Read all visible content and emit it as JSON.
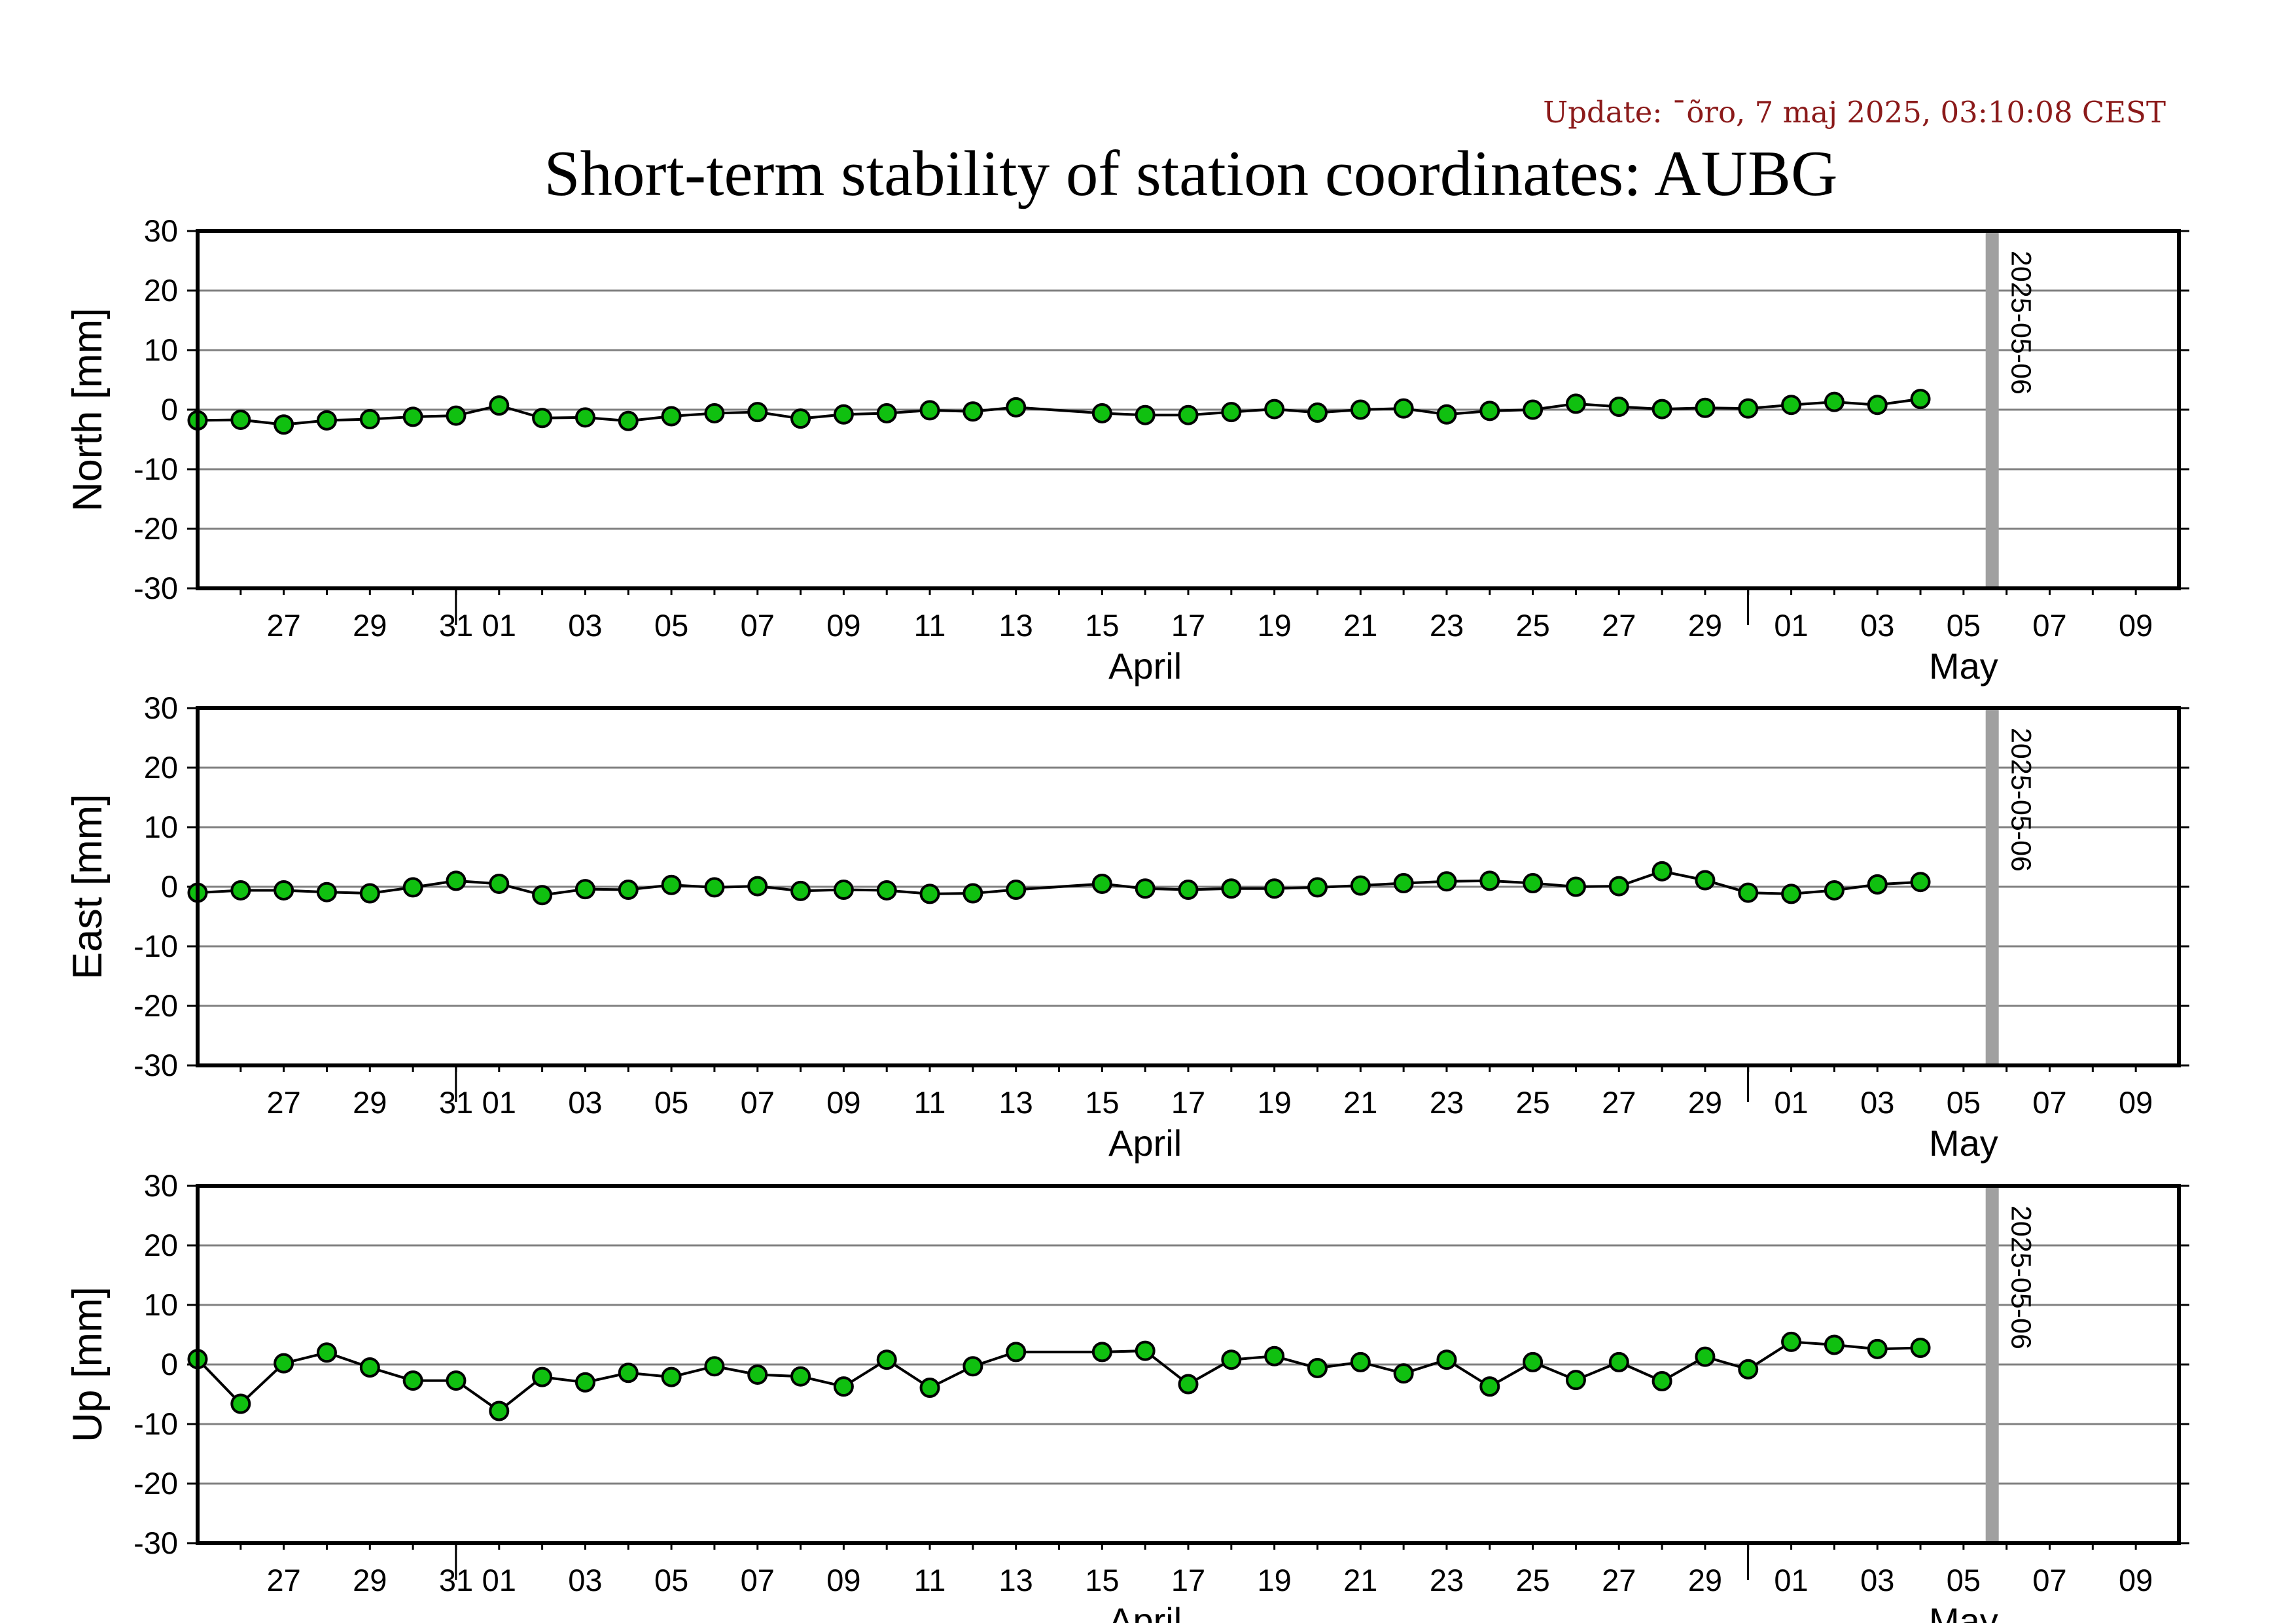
{
  "update_text": "Update: ¯õro, 7 maj 2025, 03:10:08 CEST",
  "title": "Short-term stability of station coordinates: AUBG",
  "colors": {
    "marker": "#10c010",
    "line": "#000000",
    "grid": "#808080",
    "today": "#a0a0a0",
    "update": "#8b1a1a"
  },
  "chart_data": [
    {
      "type": "line",
      "ylabel": "North [mm]",
      "ylim": [
        -30,
        30
      ],
      "yticks": [
        30,
        20,
        10,
        0,
        -10,
        -20,
        -30
      ],
      "grid": true,
      "xlim": [
        "2025-03-25",
        "2025-05-10"
      ],
      "month_labels": [
        {
          "label": "April",
          "date": "2025-04-16"
        },
        {
          "label": "May",
          "date": "2025-05-05"
        }
      ],
      "xtick_labels": [
        {
          "label": "27",
          "date": "2025-03-27"
        },
        {
          "label": "29",
          "date": "2025-03-29"
        },
        {
          "label": "31",
          "date": "2025-03-31"
        },
        {
          "label": "01",
          "date": "2025-04-01"
        },
        {
          "label": "03",
          "date": "2025-04-03"
        },
        {
          "label": "05",
          "date": "2025-04-05"
        },
        {
          "label": "07",
          "date": "2025-04-07"
        },
        {
          "label": "09",
          "date": "2025-04-09"
        },
        {
          "label": "11",
          "date": "2025-04-11"
        },
        {
          "label": "13",
          "date": "2025-04-13"
        },
        {
          "label": "15",
          "date": "2025-04-15"
        },
        {
          "label": "17",
          "date": "2025-04-17"
        },
        {
          "label": "19",
          "date": "2025-04-19"
        },
        {
          "label": "21",
          "date": "2025-04-21"
        },
        {
          "label": "23",
          "date": "2025-04-23"
        },
        {
          "label": "25",
          "date": "2025-04-25"
        },
        {
          "label": "27",
          "date": "2025-04-27"
        },
        {
          "label": "29",
          "date": "2025-04-29"
        },
        {
          "label": "01",
          "date": "2025-05-01"
        },
        {
          "label": "03",
          "date": "2025-05-03"
        },
        {
          "label": "05",
          "date": "2025-05-05"
        },
        {
          "label": "07",
          "date": "2025-05-07"
        },
        {
          "label": "09",
          "date": "2025-05-09"
        }
      ],
      "marker_line": {
        "date": "2025-05-06",
        "label": "2025-05-06"
      },
      "series": [
        {
          "x": [
            "2025-03-25",
            "2025-03-26",
            "2025-03-27",
            "2025-03-28",
            "2025-03-29",
            "2025-03-30",
            "2025-03-31",
            "2025-04-01",
            "2025-04-02",
            "2025-04-03",
            "2025-04-04",
            "2025-04-05",
            "2025-04-06",
            "2025-04-07",
            "2025-04-08",
            "2025-04-09",
            "2025-04-10",
            "2025-04-11",
            "2025-04-12",
            "2025-04-13",
            "2025-04-15",
            "2025-04-16",
            "2025-04-17",
            "2025-04-18",
            "2025-04-19",
            "2025-04-20",
            "2025-04-21",
            "2025-04-22",
            "2025-04-23",
            "2025-04-24",
            "2025-04-25",
            "2025-04-26",
            "2025-04-27",
            "2025-04-28",
            "2025-04-29",
            "2025-04-30",
            "2025-05-01",
            "2025-05-02",
            "2025-05-03",
            "2025-05-04",
            "2025-05-05"
          ],
          "y": [
            -1.8,
            -1.7,
            -2.5,
            -1.8,
            -1.6,
            -1.2,
            -1.0,
            0.7,
            -1.4,
            -1.3,
            -1.9,
            -1.1,
            -0.6,
            -0.4,
            -1.5,
            -0.8,
            -0.6,
            -0.1,
            -0.3,
            0.4,
            -0.6,
            -0.9,
            -0.9,
            -0.4,
            0.1,
            -0.5,
            0.0,
            0.2,
            -0.8,
            -0.2,
            0.0,
            1.0,
            0.5,
            0.1,
            0.3,
            0.2,
            0.8,
            1.3,
            0.8,
            1.8,
            null
          ]
        }
      ]
    },
    {
      "type": "line",
      "ylabel": "East [mm]",
      "ylim": [
        -30,
        30
      ],
      "yticks": [
        30,
        20,
        10,
        0,
        -10,
        -20,
        -30
      ],
      "grid": true,
      "xlim": [
        "2025-03-25",
        "2025-05-10"
      ],
      "month_labels": [
        {
          "label": "April",
          "date": "2025-04-16"
        },
        {
          "label": "May",
          "date": "2025-05-05"
        }
      ],
      "xtick_labels": [
        {
          "label": "27",
          "date": "2025-03-27"
        },
        {
          "label": "29",
          "date": "2025-03-29"
        },
        {
          "label": "31",
          "date": "2025-03-31"
        },
        {
          "label": "01",
          "date": "2025-04-01"
        },
        {
          "label": "03",
          "date": "2025-04-03"
        },
        {
          "label": "05",
          "date": "2025-04-05"
        },
        {
          "label": "07",
          "date": "2025-04-07"
        },
        {
          "label": "09",
          "date": "2025-04-09"
        },
        {
          "label": "11",
          "date": "2025-04-11"
        },
        {
          "label": "13",
          "date": "2025-04-13"
        },
        {
          "label": "15",
          "date": "2025-04-15"
        },
        {
          "label": "17",
          "date": "2025-04-17"
        },
        {
          "label": "19",
          "date": "2025-04-19"
        },
        {
          "label": "21",
          "date": "2025-04-21"
        },
        {
          "label": "23",
          "date": "2025-04-23"
        },
        {
          "label": "25",
          "date": "2025-04-25"
        },
        {
          "label": "27",
          "date": "2025-04-27"
        },
        {
          "label": "29",
          "date": "2025-04-29"
        },
        {
          "label": "01",
          "date": "2025-05-01"
        },
        {
          "label": "03",
          "date": "2025-05-03"
        },
        {
          "label": "05",
          "date": "2025-05-05"
        },
        {
          "label": "07",
          "date": "2025-05-07"
        },
        {
          "label": "09",
          "date": "2025-05-09"
        }
      ],
      "marker_line": {
        "date": "2025-05-06",
        "label": "2025-05-06"
      },
      "series": [
        {
          "x": [
            "2025-03-25",
            "2025-03-26",
            "2025-03-27",
            "2025-03-28",
            "2025-03-29",
            "2025-03-30",
            "2025-03-31",
            "2025-04-01",
            "2025-04-02",
            "2025-04-03",
            "2025-04-04",
            "2025-04-05",
            "2025-04-06",
            "2025-04-07",
            "2025-04-08",
            "2025-04-09",
            "2025-04-10",
            "2025-04-11",
            "2025-04-12",
            "2025-04-13",
            "2025-04-15",
            "2025-04-16",
            "2025-04-17",
            "2025-04-18",
            "2025-04-19",
            "2025-04-20",
            "2025-04-21",
            "2025-04-22",
            "2025-04-23",
            "2025-04-24",
            "2025-04-25",
            "2025-04-26",
            "2025-04-27",
            "2025-04-28",
            "2025-04-29",
            "2025-04-30",
            "2025-05-01",
            "2025-05-02",
            "2025-05-03",
            "2025-05-04"
          ],
          "y": [
            -1.0,
            -0.6,
            -0.6,
            -0.9,
            -1.1,
            -0.1,
            1.0,
            0.5,
            -1.4,
            -0.4,
            -0.5,
            0.3,
            -0.1,
            0.1,
            -0.7,
            -0.5,
            -0.6,
            -1.2,
            -1.1,
            -0.5,
            0.5,
            -0.3,
            -0.5,
            -0.3,
            -0.3,
            -0.1,
            0.2,
            0.6,
            0.9,
            1.0,
            0.6,
            0.0,
            0.1,
            2.6,
            1.1,
            -1.0,
            -1.2,
            -0.6,
            0.4,
            0.8
          ]
        }
      ]
    },
    {
      "type": "line",
      "ylabel": "Up [mm]",
      "ylim": [
        -30,
        30
      ],
      "yticks": [
        30,
        20,
        10,
        0,
        -10,
        -20,
        -30
      ],
      "grid": true,
      "xlim": [
        "2025-03-25",
        "2025-05-10"
      ],
      "month_labels": [
        {
          "label": "April",
          "date": "2025-04-16"
        },
        {
          "label": "May",
          "date": "2025-05-05"
        }
      ],
      "xtick_labels": [
        {
          "label": "27",
          "date": "2025-03-27"
        },
        {
          "label": "29",
          "date": "2025-03-29"
        },
        {
          "label": "31",
          "date": "2025-03-31"
        },
        {
          "label": "01",
          "date": "2025-04-01"
        },
        {
          "label": "03",
          "date": "2025-04-03"
        },
        {
          "label": "05",
          "date": "2025-04-05"
        },
        {
          "label": "07",
          "date": "2025-04-07"
        },
        {
          "label": "09",
          "date": "2025-04-09"
        },
        {
          "label": "11",
          "date": "2025-04-11"
        },
        {
          "label": "13",
          "date": "2025-04-13"
        },
        {
          "label": "15",
          "date": "2025-04-15"
        },
        {
          "label": "17",
          "date": "2025-04-17"
        },
        {
          "label": "19",
          "date": "2025-04-19"
        },
        {
          "label": "21",
          "date": "2025-04-21"
        },
        {
          "label": "23",
          "date": "2025-04-23"
        },
        {
          "label": "25",
          "date": "2025-04-25"
        },
        {
          "label": "27",
          "date": "2025-04-27"
        },
        {
          "label": "29",
          "date": "2025-04-29"
        },
        {
          "label": "01",
          "date": "2025-05-01"
        },
        {
          "label": "03",
          "date": "2025-05-03"
        },
        {
          "label": "05",
          "date": "2025-05-05"
        },
        {
          "label": "07",
          "date": "2025-05-07"
        },
        {
          "label": "09",
          "date": "2025-05-09"
        }
      ],
      "marker_line": {
        "date": "2025-05-06",
        "label": "2025-05-06"
      },
      "series": [
        {
          "x": [
            "2025-03-25",
            "2025-03-26",
            "2025-03-27",
            "2025-03-28",
            "2025-03-29",
            "2025-03-30",
            "2025-03-31",
            "2025-04-01",
            "2025-04-02",
            "2025-04-03",
            "2025-04-04",
            "2025-04-05",
            "2025-04-06",
            "2025-04-07",
            "2025-04-08",
            "2025-04-09",
            "2025-04-10",
            "2025-04-11",
            "2025-04-12",
            "2025-04-13",
            "2025-04-15",
            "2025-04-16",
            "2025-04-17",
            "2025-04-18",
            "2025-04-19",
            "2025-04-20",
            "2025-04-21",
            "2025-04-22",
            "2025-04-23",
            "2025-04-24",
            "2025-04-25",
            "2025-04-26",
            "2025-04-27",
            "2025-04-28",
            "2025-04-29",
            "2025-04-30",
            "2025-05-01",
            "2025-05-02",
            "2025-05-03",
            "2025-05-04"
          ],
          "y": [
            0.9,
            -6.6,
            0.2,
            2.0,
            -0.5,
            -2.7,
            -2.7,
            -7.8,
            -2.1,
            -3.0,
            -1.4,
            -2.1,
            -0.3,
            -1.7,
            -2.0,
            -3.7,
            0.8,
            -3.9,
            -0.3,
            2.1,
            2.1,
            2.3,
            -3.3,
            0.8,
            1.4,
            -0.6,
            0.4,
            -1.5,
            0.8,
            -3.7,
            0.4,
            -2.6,
            0.4,
            -2.8,
            1.3,
            -0.8,
            3.8,
            3.3,
            2.6,
            2.8
          ]
        }
      ]
    }
  ]
}
